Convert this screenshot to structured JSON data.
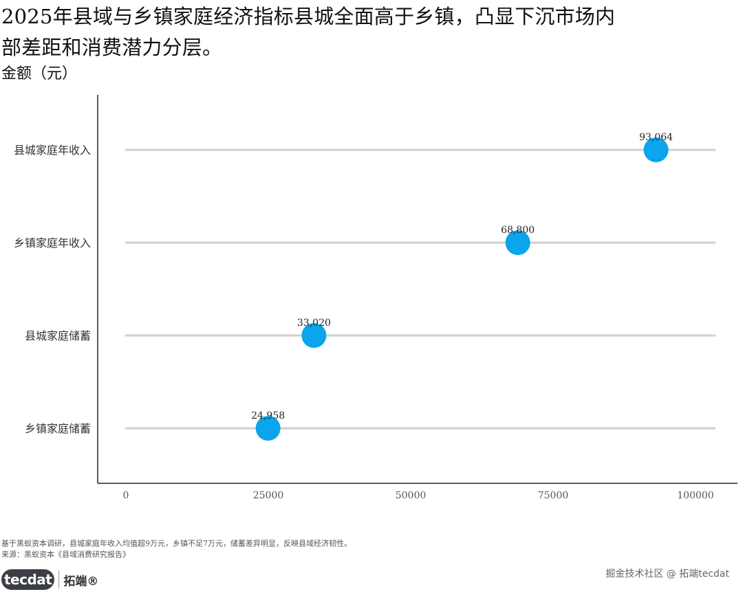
{
  "header": {
    "title": "2025年县域与乡镇家庭经济指标县城全面高于乡镇，凸显下沉市场内部差距和消费潜力分层。",
    "y_unit": "金额（元）"
  },
  "chart_data": {
    "type": "scatter",
    "subtype": "lollipop-dot",
    "orientation": "horizontal",
    "categories": [
      "县城家庭年收入",
      "乡镇家庭年收入",
      "县城家庭储蓄",
      "乡镇家庭储蓄"
    ],
    "values": [
      93064,
      68800,
      33020,
      24958
    ],
    "value_labels": [
      "93,064",
      "68,800",
      "33,020",
      "24,958"
    ],
    "xlim": [
      0,
      103000
    ],
    "x_ticks": [
      0,
      25000,
      50000,
      75000,
      100000
    ],
    "x_tick_labels": [
      "0",
      "25000",
      "50000",
      "75000",
      "100000"
    ],
    "grid": false,
    "legend": "none",
    "colors": {
      "point": "#0aa5ec",
      "track": "#cfcfcf",
      "axis": "#222222"
    }
  },
  "footer": {
    "note": "基于黑蚁资本调研，县城家庭年收入均值超9万元，乡镇不足7万元，储蓄差异明显，反映县域经济韧性。",
    "source": "来源：黑蚁资本《县域消费研究报告》",
    "logo_text": "tecdat",
    "logo_cn": "拓端®",
    "watermark": "掘金技术社区 @ 拓端tecdat"
  }
}
